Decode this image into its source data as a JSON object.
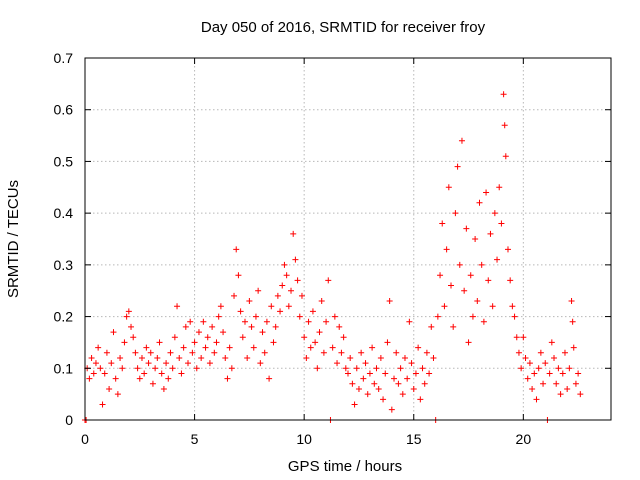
{
  "chart_data": {
    "type": "scatter",
    "title": "Day 050 of 2016, SRMTID for receiver froy",
    "xlabel": "GPS time / hours",
    "ylabel": "SRMTID / TECUs",
    "xlim": [
      0,
      24
    ],
    "ylim": [
      0,
      0.7
    ],
    "x_ticks": [
      "0",
      "5",
      "10",
      "15",
      "20"
    ],
    "y_ticks": [
      "0",
      "0.1",
      "0.2",
      "0.3",
      "0.4",
      "0.5",
      "0.6",
      "0.7"
    ],
    "grid": true,
    "marker": "+",
    "series": [
      {
        "name": "SRMTID",
        "color": "#ff0000",
        "points": [
          [
            0.0,
            0.0
          ],
          [
            0.05,
            0.0
          ],
          [
            0.1,
            0.1
          ],
          [
            0.2,
            0.08
          ],
          [
            0.3,
            0.12
          ],
          [
            0.4,
            0.09
          ],
          [
            0.5,
            0.11
          ],
          [
            0.6,
            0.14
          ],
          [
            0.7,
            0.1
          ],
          [
            0.8,
            0.03
          ],
          [
            0.9,
            0.09
          ],
          [
            1.0,
            0.13
          ],
          [
            1.1,
            0.06
          ],
          [
            1.2,
            0.11
          ],
          [
            1.3,
            0.17
          ],
          [
            1.4,
            0.08
          ],
          [
            1.5,
            0.05
          ],
          [
            1.6,
            0.12
          ],
          [
            1.7,
            0.1
          ],
          [
            1.8,
            0.15
          ],
          [
            1.9,
            0.2
          ],
          [
            2.0,
            0.21
          ],
          [
            2.1,
            0.18
          ],
          [
            2.2,
            0.16
          ],
          [
            2.3,
            0.13
          ],
          [
            2.4,
            0.1
          ],
          [
            2.5,
            0.08
          ],
          [
            2.6,
            0.12
          ],
          [
            2.7,
            0.09
          ],
          [
            2.8,
            0.14
          ],
          [
            2.9,
            0.11
          ],
          [
            3.0,
            0.13
          ],
          [
            3.1,
            0.07
          ],
          [
            3.2,
            0.1
          ],
          [
            3.3,
            0.12
          ],
          [
            3.4,
            0.15
          ],
          [
            3.5,
            0.09
          ],
          [
            3.6,
            0.06
          ],
          [
            3.7,
            0.11
          ],
          [
            3.8,
            0.08
          ],
          [
            3.9,
            0.13
          ],
          [
            4.0,
            0.1
          ],
          [
            4.1,
            0.16
          ],
          [
            4.2,
            0.22
          ],
          [
            4.3,
            0.12
          ],
          [
            4.4,
            0.09
          ],
          [
            4.5,
            0.14
          ],
          [
            4.6,
            0.18
          ],
          [
            4.7,
            0.11
          ],
          [
            4.8,
            0.19
          ],
          [
            4.9,
            0.13
          ],
          [
            5.0,
            0.15
          ],
          [
            5.1,
            0.1
          ],
          [
            5.2,
            0.17
          ],
          [
            5.3,
            0.12
          ],
          [
            5.4,
            0.19
          ],
          [
            5.5,
            0.14
          ],
          [
            5.6,
            0.16
          ],
          [
            5.7,
            0.11
          ],
          [
            5.8,
            0.18
          ],
          [
            5.9,
            0.13
          ],
          [
            6.0,
            0.15
          ],
          [
            6.1,
            0.2
          ],
          [
            6.2,
            0.22
          ],
          [
            6.3,
            0.17
          ],
          [
            6.4,
            0.12
          ],
          [
            6.5,
            0.08
          ],
          [
            6.6,
            0.14
          ],
          [
            6.7,
            0.1
          ],
          [
            6.8,
            0.24
          ],
          [
            6.9,
            0.33
          ],
          [
            7.0,
            0.28
          ],
          [
            7.1,
            0.21
          ],
          [
            7.2,
            0.16
          ],
          [
            7.3,
            0.19
          ],
          [
            7.4,
            0.12
          ],
          [
            7.5,
            0.23
          ],
          [
            7.6,
            0.18
          ],
          [
            7.7,
            0.14
          ],
          [
            7.8,
            0.2
          ],
          [
            7.9,
            0.25
          ],
          [
            8.0,
            0.11
          ],
          [
            8.1,
            0.17
          ],
          [
            8.2,
            0.13
          ],
          [
            8.3,
            0.19
          ],
          [
            8.4,
            0.08
          ],
          [
            8.5,
            0.22
          ],
          [
            8.6,
            0.15
          ],
          [
            8.7,
            0.18
          ],
          [
            8.8,
            0.24
          ],
          [
            8.9,
            0.21
          ],
          [
            9.0,
            0.26
          ],
          [
            9.1,
            0.3
          ],
          [
            9.2,
            0.28
          ],
          [
            9.3,
            0.22
          ],
          [
            9.4,
            0.25
          ],
          [
            9.5,
            0.36
          ],
          [
            9.6,
            0.31
          ],
          [
            9.7,
            0.27
          ],
          [
            9.8,
            0.2
          ],
          [
            9.9,
            0.24
          ],
          [
            10.0,
            0.16
          ],
          [
            10.1,
            0.12
          ],
          [
            10.2,
            0.19
          ],
          [
            10.3,
            0.14
          ],
          [
            10.4,
            0.21
          ],
          [
            10.5,
            0.15
          ],
          [
            10.6,
            0.1
          ],
          [
            10.7,
            0.17
          ],
          [
            10.8,
            0.23
          ],
          [
            10.9,
            0.13
          ],
          [
            11.0,
            0.19
          ],
          [
            11.1,
            0.27
          ],
          [
            11.2,
            0.0
          ],
          [
            11.3,
            0.14
          ],
          [
            11.4,
            0.2
          ],
          [
            11.5,
            0.11
          ],
          [
            11.6,
            0.18
          ],
          [
            11.7,
            0.13
          ],
          [
            11.8,
            0.16
          ],
          [
            11.9,
            0.1
          ],
          [
            12.0,
            0.09
          ],
          [
            12.1,
            0.12
          ],
          [
            12.2,
            0.07
          ],
          [
            12.3,
            0.03
          ],
          [
            12.4,
            0.1
          ],
          [
            12.5,
            0.06
          ],
          [
            12.6,
            0.13
          ],
          [
            12.7,
            0.08
          ],
          [
            12.8,
            0.11
          ],
          [
            12.9,
            0.05
          ],
          [
            13.0,
            0.09
          ],
          [
            13.1,
            0.14
          ],
          [
            13.2,
            0.07
          ],
          [
            13.3,
            0.1
          ],
          [
            13.4,
            0.06
          ],
          [
            13.5,
            0.12
          ],
          [
            13.6,
            0.04
          ],
          [
            13.7,
            0.09
          ],
          [
            13.8,
            0.15
          ],
          [
            13.9,
            0.23
          ],
          [
            14.0,
            0.02
          ],
          [
            14.1,
            0.08
          ],
          [
            14.2,
            0.13
          ],
          [
            14.3,
            0.07
          ],
          [
            14.4,
            0.1
          ],
          [
            14.5,
            0.05
          ],
          [
            14.6,
            0.12
          ],
          [
            14.7,
            0.08
          ],
          [
            14.8,
            0.19
          ],
          [
            14.9,
            0.11
          ],
          [
            15.0,
            0.06
          ],
          [
            15.1,
            0.09
          ],
          [
            15.2,
            0.14
          ],
          [
            15.3,
            0.04
          ],
          [
            15.4,
            0.1
          ],
          [
            15.5,
            0.07
          ],
          [
            15.6,
            0.13
          ],
          [
            15.7,
            0.09
          ],
          [
            15.8,
            0.18
          ],
          [
            15.9,
            0.12
          ],
          [
            16.0,
            0.0
          ],
          [
            16.1,
            0.2
          ],
          [
            16.2,
            0.28
          ],
          [
            16.3,
            0.38
          ],
          [
            16.4,
            0.22
          ],
          [
            16.5,
            0.33
          ],
          [
            16.6,
            0.45
          ],
          [
            16.7,
            0.26
          ],
          [
            16.8,
            0.18
          ],
          [
            16.9,
            0.4
          ],
          [
            17.0,
            0.49
          ],
          [
            17.1,
            0.3
          ],
          [
            17.2,
            0.54
          ],
          [
            17.3,
            0.25
          ],
          [
            17.4,
            0.37
          ],
          [
            17.5,
            0.15
          ],
          [
            17.6,
            0.28
          ],
          [
            17.7,
            0.2
          ],
          [
            17.8,
            0.35
          ],
          [
            17.9,
            0.23
          ],
          [
            18.0,
            0.42
          ],
          [
            18.1,
            0.3
          ],
          [
            18.2,
            0.19
          ],
          [
            18.3,
            0.44
          ],
          [
            18.4,
            0.27
          ],
          [
            18.5,
            0.36
          ],
          [
            18.6,
            0.22
          ],
          [
            18.7,
            0.4
          ],
          [
            18.8,
            0.31
          ],
          [
            18.9,
            0.45
          ],
          [
            19.0,
            0.38
          ],
          [
            19.1,
            0.63
          ],
          [
            19.15,
            0.57
          ],
          [
            19.2,
            0.51
          ],
          [
            19.3,
            0.33
          ],
          [
            19.4,
            0.27
          ],
          [
            19.5,
            0.22
          ],
          [
            19.6,
            0.2
          ],
          [
            19.7,
            0.16
          ],
          [
            19.8,
            0.13
          ],
          [
            19.9,
            0.1
          ],
          [
            20.0,
            0.16
          ],
          [
            20.1,
            0.12
          ],
          [
            20.2,
            0.08
          ],
          [
            20.3,
            0.11
          ],
          [
            20.4,
            0.06
          ],
          [
            20.5,
            0.09
          ],
          [
            20.6,
            0.04
          ],
          [
            20.7,
            0.1
          ],
          [
            20.8,
            0.13
          ],
          [
            20.9,
            0.07
          ],
          [
            21.0,
            0.11
          ],
          [
            21.1,
            0.0
          ],
          [
            21.2,
            0.09
          ],
          [
            21.3,
            0.15
          ],
          [
            21.4,
            0.12
          ],
          [
            21.5,
            0.07
          ],
          [
            21.6,
            0.1
          ],
          [
            21.7,
            0.05
          ],
          [
            21.8,
            0.09
          ],
          [
            21.9,
            0.13
          ],
          [
            22.0,
            0.06
          ],
          [
            22.1,
            0.1
          ],
          [
            22.2,
            0.23
          ],
          [
            22.25,
            0.19
          ],
          [
            22.3,
            0.14
          ],
          [
            22.4,
            0.07
          ],
          [
            22.5,
            0.09
          ],
          [
            22.6,
            0.05
          ]
        ]
      }
    ]
  }
}
